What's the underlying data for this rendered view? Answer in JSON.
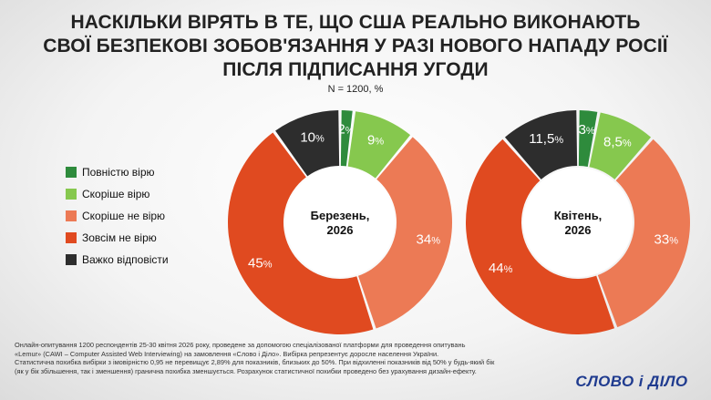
{
  "title_lines": [
    "НАСКІЛЬКИ ВІРЯТЬ В ТЕ, ЩО США РЕАЛЬНО ВИКОНАЮТЬ",
    "СВОЇ БЕЗПЕКОВІ ЗОБОВ'ЯЗАННЯ У РАЗІ НОВОГО НАПАДУ РОСІЇ",
    "ПІСЛЯ ПІДПИСАННЯ УГОДИ"
  ],
  "subtitle": "N = 1200, %",
  "legend": [
    {
      "label": "Повністю вірю",
      "color": "#2e8b3c"
    },
    {
      "label": "Скоріше вірю",
      "color": "#86c84e"
    },
    {
      "label": "Скоріше не вірю",
      "color": "#ec7a55"
    },
    {
      "label": "Зовсім не вірю",
      "color": "#e04a20"
    },
    {
      "label": "Важко відповісти",
      "color": "#2d2d2d"
    }
  ],
  "chart_data": [
    {
      "type": "donut",
      "center_label_lines": [
        "Березень,",
        "2026"
      ],
      "categories": [
        "Повністю вірю",
        "Скоріше вірю",
        "Скоріше не вірю",
        "Зовсім не вірю",
        "Важко відповісти"
      ],
      "values": [
        2,
        9,
        34,
        45,
        10
      ],
      "value_labels": [
        "2",
        "9",
        "34",
        "45",
        "10"
      ],
      "unit": "%",
      "colors": [
        "#2e8b3c",
        "#86c84e",
        "#ec7a55",
        "#e04a20",
        "#2d2d2d"
      ]
    },
    {
      "type": "donut",
      "center_label_lines": [
        "Квітень,",
        "2026"
      ],
      "categories": [
        "Повністю вірю",
        "Скоріше вірю",
        "Скоріше не вірю",
        "Зовсім не вірю",
        "Важко відповісти"
      ],
      "values": [
        3,
        8.5,
        33,
        44,
        11.5
      ],
      "value_labels": [
        "3",
        "8,5",
        "33",
        "44",
        "11,5"
      ],
      "unit": "%",
      "colors": [
        "#2e8b3c",
        "#86c84e",
        "#ec7a55",
        "#e04a20",
        "#2d2d2d"
      ]
    }
  ],
  "footer_lines": [
    "Онлайн-опитування 1200 респондентів 25-30 квітня 2026 року, проведене за допомогою спеціалізованої платформи для проведення опитувань",
    "«Lemur» (CAWI – Computer Assisted Web Interviewing) на замовлення «Слово і Діло». Вибірка репрезентує доросле населення України.",
    "Статистична похибка вибірки з імовірністю 0,95 не перевищує 2,89% для показників, близьких до 50%. При відхиленні показників від 50% у будь-який бік",
    "(як у бік збільшення, так і зменшення) гранична похибка зменшується. Розрахунок статистичної похибки проведено без урахування дизайн-ефекту."
  ],
  "logo_text": "СЛОВО і ДІЛО"
}
